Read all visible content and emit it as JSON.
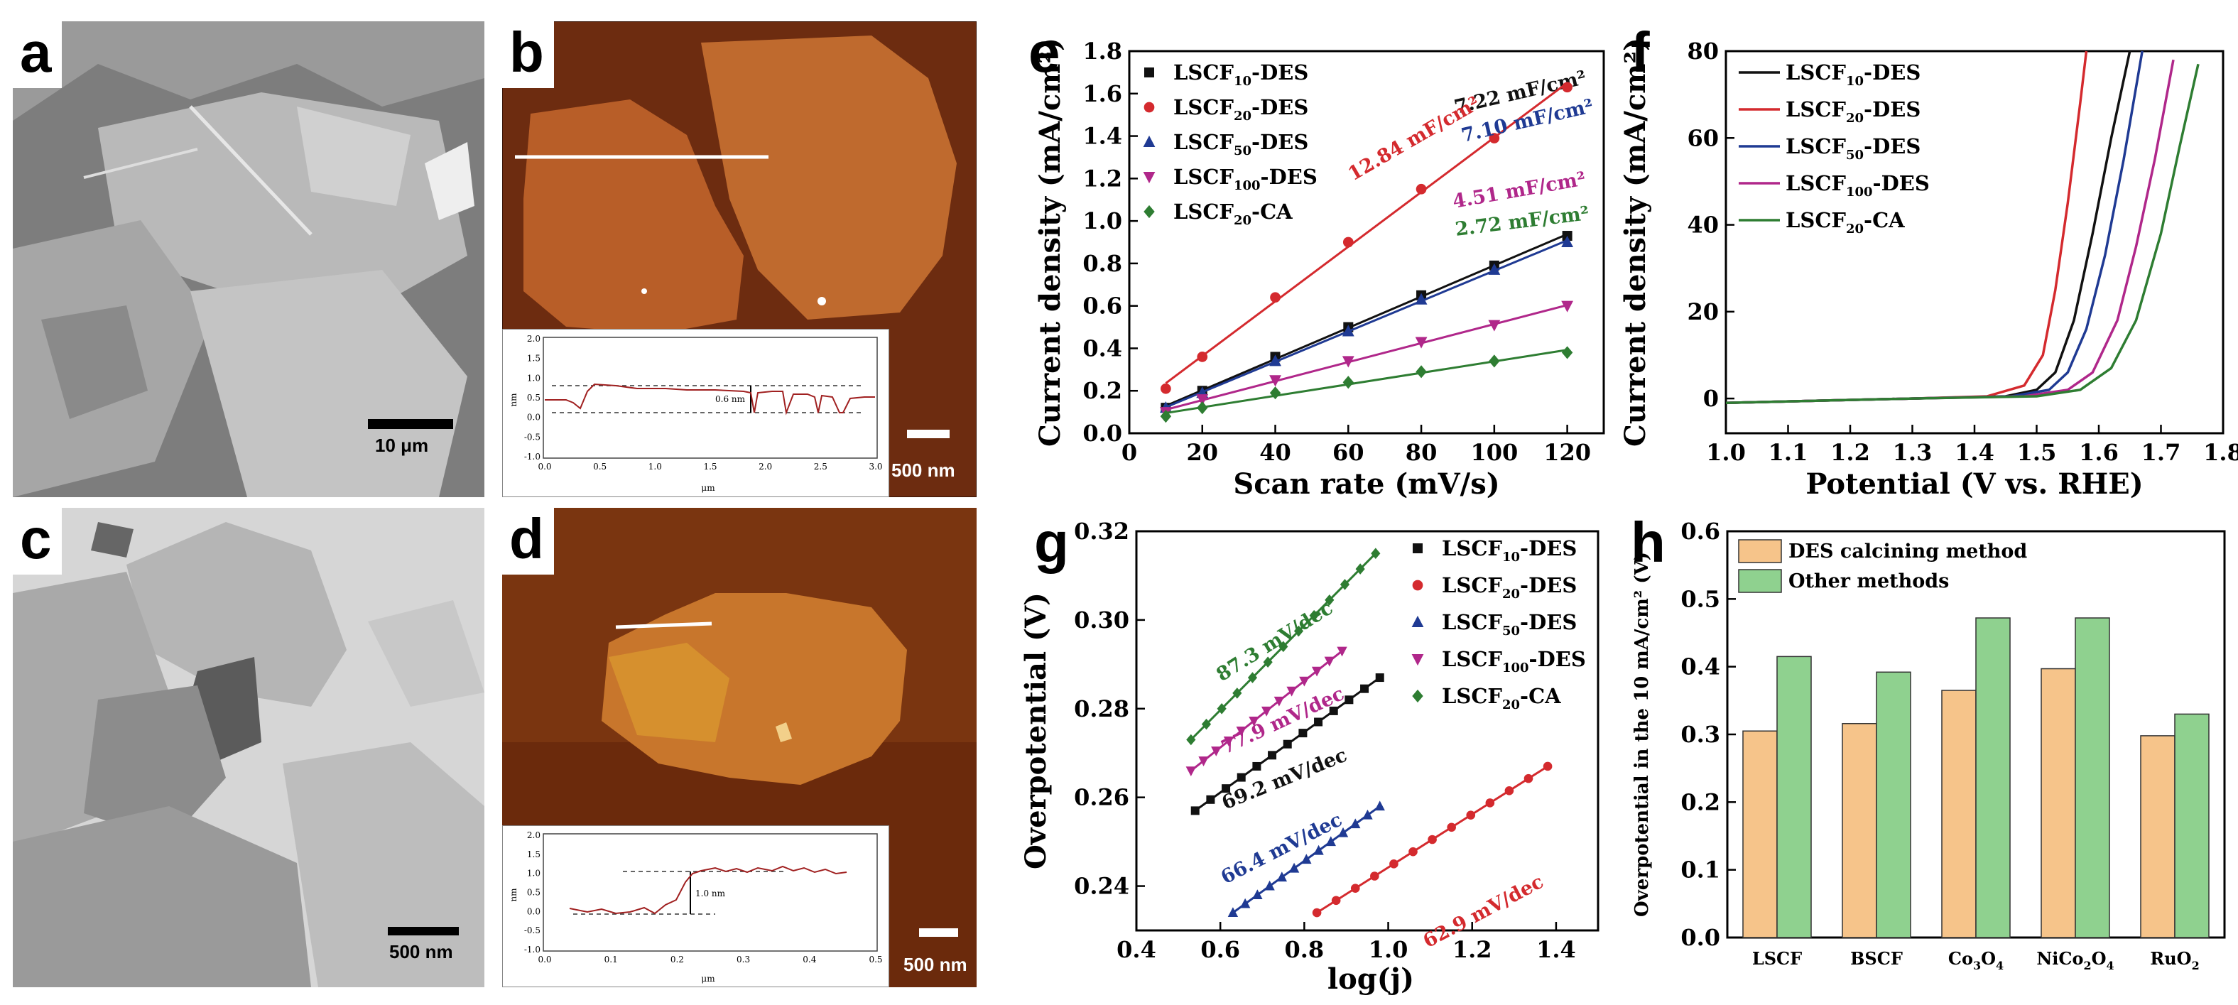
{
  "panels": {
    "a": {
      "letter": "a",
      "scale_label": "10 μm"
    },
    "b": {
      "letter": "b",
      "scale_label": "500 nm",
      "inset": {
        "xlabel": "μm",
        "ylabel": "nm",
        "height_label": "0.6 nm",
        "xticks": [
          "0.0",
          "0.5",
          "1.0",
          "1.5",
          "2.0",
          "2.5",
          "3.0"
        ],
        "yticks": [
          "2.0",
          "1.5",
          "1.0",
          "0.5",
          "0.0",
          "-0.5",
          "-1.0"
        ]
      }
    },
    "c": {
      "letter": "c",
      "scale_label": "500 nm"
    },
    "d": {
      "letter": "d",
      "scale_label": "500 nm",
      "inset": {
        "xlabel": "μm",
        "ylabel": "nm",
        "height_label": "1.0 nm",
        "xticks": [
          "0.0",
          "0.1",
          "0.2",
          "0.3",
          "0.4",
          "0.5"
        ],
        "yticks": [
          "2.0",
          "1.5",
          "1.0",
          "0.5",
          "0.0",
          "-0.5",
          "-1.0"
        ]
      }
    },
    "e": {
      "letter": "e"
    },
    "f": {
      "letter": "f"
    },
    "g": {
      "letter": "g"
    },
    "h": {
      "letter": "h"
    }
  },
  "colors": {
    "black": "#111111",
    "red": "#d42a2e",
    "blue": "#1f3a93",
    "purple": "#b0278a",
    "green": "#2e7d32",
    "orange": "#f6c48a",
    "lightgreen": "#8fd18f"
  },
  "chart_data": [
    {
      "id": "e",
      "type": "scatter",
      "xlabel": "Scan rate (mV/s)",
      "ylabel": "Current density (mA/cm²)",
      "xlim": [
        0,
        130
      ],
      "ylim": [
        0,
        1.8
      ],
      "xticks": [
        "0",
        "20",
        "40",
        "60",
        "80",
        "100",
        "120"
      ],
      "yticks": [
        "0.0",
        "0.2",
        "0.4",
        "0.6",
        "0.8",
        "1.0",
        "1.2",
        "1.4",
        "1.6",
        "1.8"
      ],
      "x": [
        10,
        20,
        40,
        60,
        80,
        100,
        120
      ],
      "series": [
        {
          "name": "LSCF10-DES",
          "base": "LSCF",
          "sub": "10",
          "suffix": "-DES",
          "marker": "square",
          "color": "#111111",
          "values": [
            0.12,
            0.2,
            0.36,
            0.5,
            0.65,
            0.79,
            0.93
          ],
          "annotation": "7.22 mF/cm²"
        },
        {
          "name": "LSCF20-DES",
          "base": "LSCF",
          "sub": "20",
          "suffix": "-DES",
          "marker": "circle",
          "color": "#d42a2e",
          "values": [
            0.21,
            0.36,
            0.64,
            0.9,
            1.15,
            1.39,
            1.63
          ],
          "annotation": "12.84 mF/cm²"
        },
        {
          "name": "LSCF50-DES",
          "base": "LSCF",
          "sub": "50",
          "suffix": "-DES",
          "marker": "triangle",
          "color": "#1f3a93",
          "values": [
            0.12,
            0.19,
            0.34,
            0.48,
            0.63,
            0.77,
            0.9
          ],
          "annotation": "7.10 mF/cm²"
        },
        {
          "name": "LSCF100-DES",
          "base": "LSCF",
          "sub": "100",
          "suffix": "-DES",
          "marker": "triangle-down",
          "color": "#b0278a",
          "values": [
            0.1,
            0.16,
            0.25,
            0.34,
            0.43,
            0.51,
            0.6
          ],
          "annotation": "4.51 mF/cm²"
        },
        {
          "name": "LSCF20-CA",
          "base": "LSCF",
          "sub": "20",
          "suffix": "-CA",
          "marker": "diamond",
          "color": "#2e7d32",
          "values": [
            0.08,
            0.12,
            0.19,
            0.24,
            0.29,
            0.34,
            0.38
          ],
          "annotation": "2.72 mF/cm²"
        }
      ]
    },
    {
      "id": "f",
      "type": "line",
      "xlabel": "Potential (V vs. RHE)",
      "ylabel": "Current density (mA/cm²)",
      "xlim": [
        1.0,
        1.8
      ],
      "ylim": [
        -8,
        80
      ],
      "xticks": [
        "1.0",
        "1.1",
        "1.2",
        "1.3",
        "1.4",
        "1.5",
        "1.6",
        "1.7",
        "1.8"
      ],
      "yticks": [
        "0",
        "20",
        "40",
        "60",
        "80"
      ],
      "series": [
        {
          "name": "LSCF10-DES",
          "base": "LSCF",
          "sub": "10",
          "suffix": "-DES",
          "color": "#111111",
          "x": [
            1.0,
            1.3,
            1.45,
            1.5,
            1.53,
            1.56,
            1.59,
            1.62,
            1.65
          ],
          "y": [
            -1,
            0,
            0.5,
            2,
            6,
            18,
            38,
            60,
            80
          ]
        },
        {
          "name": "LSCF20-DES",
          "base": "LSCF",
          "sub": "20",
          "suffix": "-DES",
          "color": "#d42a2e",
          "x": [
            1.0,
            1.3,
            1.42,
            1.48,
            1.51,
            1.53,
            1.55,
            1.57,
            1.58
          ],
          "y": [
            -1,
            0,
            0.5,
            3,
            10,
            25,
            45,
            68,
            80
          ]
        },
        {
          "name": "LSCF50-DES",
          "base": "LSCF",
          "sub": "50",
          "suffix": "-DES",
          "color": "#1f3a93",
          "x": [
            1.0,
            1.3,
            1.46,
            1.52,
            1.55,
            1.58,
            1.61,
            1.64,
            1.67
          ],
          "y": [
            -1,
            0,
            0.5,
            2,
            6,
            16,
            33,
            55,
            80
          ]
        },
        {
          "name": "LSCF100-DES",
          "base": "LSCF",
          "sub": "100",
          "suffix": "-DES",
          "color": "#b0278a",
          "x": [
            1.0,
            1.3,
            1.48,
            1.55,
            1.59,
            1.63,
            1.66,
            1.69,
            1.72
          ],
          "y": [
            -1,
            0,
            0.5,
            2,
            6,
            18,
            35,
            55,
            78
          ]
        },
        {
          "name": "LSCF20-CA",
          "base": "LSCF",
          "sub": "20",
          "suffix": "-CA",
          "color": "#2e7d32",
          "x": [
            1.0,
            1.3,
            1.5,
            1.57,
            1.62,
            1.66,
            1.7,
            1.73,
            1.76
          ],
          "y": [
            -1,
            0,
            0.5,
            2,
            7,
            18,
            38,
            58,
            77
          ]
        }
      ]
    },
    {
      "id": "g",
      "type": "scatter",
      "xlabel": "log(j)",
      "ylabel": "Overpotential (V)",
      "xlim": [
        0.4,
        1.5
      ],
      "ylim": [
        0.23,
        0.32
      ],
      "xticks": [
        "0.4",
        "0.6",
        "0.8",
        "1.0",
        "1.2",
        "1.4"
      ],
      "yticks": [
        "0.24",
        "0.26",
        "0.28",
        "0.30",
        "0.32"
      ],
      "series": [
        {
          "name": "LSCF10-DES",
          "base": "LSCF",
          "sub": "10",
          "suffix": "-DES",
          "marker": "square",
          "color": "#111111",
          "x": [
            0.54,
            0.98
          ],
          "y": [
            0.257,
            0.287
          ],
          "annotation": "69.2 mV/dec"
        },
        {
          "name": "LSCF20-DES",
          "base": "LSCF",
          "sub": "20",
          "suffix": "-DES",
          "marker": "circle",
          "color": "#d42a2e",
          "x": [
            0.83,
            1.38
          ],
          "y": [
            0.234,
            0.267
          ],
          "annotation": "62.9 mV/dec"
        },
        {
          "name": "LSCF50-DES",
          "base": "LSCF",
          "sub": "50",
          "suffix": "-DES",
          "marker": "triangle",
          "color": "#1f3a93",
          "x": [
            0.63,
            0.98
          ],
          "y": [
            0.234,
            0.258
          ],
          "annotation": "66.4 mV/dec"
        },
        {
          "name": "LSCF100-DES",
          "base": "LSCF",
          "sub": "100",
          "suffix": "-DES",
          "marker": "triangle-down",
          "color": "#b0278a",
          "x": [
            0.53,
            0.89
          ],
          "y": [
            0.266,
            0.293
          ],
          "annotation": "77.9 mV/dec"
        },
        {
          "name": "LSCF20-CA",
          "base": "LSCF",
          "sub": "20",
          "suffix": "-CA",
          "marker": "diamond",
          "color": "#2e7d32",
          "x": [
            0.53,
            0.97
          ],
          "y": [
            0.273,
            0.315
          ],
          "annotation": "87.3 mV/dec"
        }
      ]
    },
    {
      "id": "h",
      "type": "bar",
      "xlabel": "",
      "ylabel": "Overpotential in the 10 mA/cm² (V)",
      "ylim": [
        0,
        0.6
      ],
      "yticks": [
        "0.0",
        "0.1",
        "0.2",
        "0.3",
        "0.4",
        "0.5",
        "0.6"
      ],
      "categories": [
        {
          "base": "LSCF",
          "parts": []
        },
        {
          "base": "BSCF",
          "parts": []
        },
        {
          "base": "Co",
          "parts": [
            [
              "3",
              true
            ],
            [
              "O",
              false
            ],
            [
              "4",
              true
            ]
          ]
        },
        {
          "base": "NiCo",
          "parts": [
            [
              "2",
              true
            ],
            [
              "O",
              false
            ],
            [
              "4",
              true
            ]
          ]
        },
        {
          "base": "RuO",
          "parts": [
            [
              "2",
              true
            ]
          ]
        }
      ],
      "category_names": [
        "LSCF",
        "BSCF",
        "Co3O4",
        "NiCo2O4",
        "RuO2"
      ],
      "series": [
        {
          "name": "DES calcining method",
          "color": "#f6c48a",
          "values": [
            0.305,
            0.316,
            0.365,
            0.397,
            0.298
          ]
        },
        {
          "name": "Other methods",
          "color": "#8fd18f",
          "values": [
            0.415,
            0.392,
            0.472,
            0.472,
            0.33
          ]
        }
      ]
    }
  ]
}
